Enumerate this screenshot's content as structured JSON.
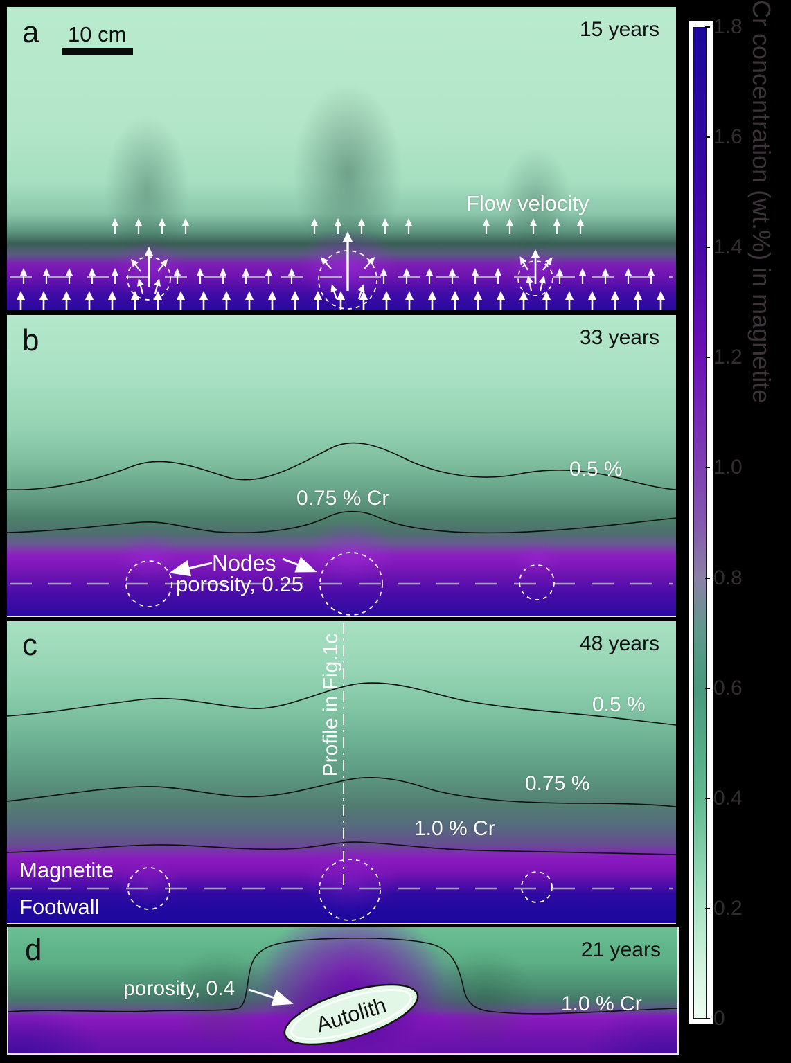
{
  "figure": {
    "panels": {
      "a": {
        "label": "a",
        "time": "15 years",
        "scalebar": "10 cm",
        "flow_label": "Flow velocity"
      },
      "b": {
        "label": "b",
        "time": "33 years",
        "contour_05": "0.5 %",
        "contour_075": "0.75 % Cr",
        "nodes_label": "Nodes",
        "porosity_label": "porosity, 0.25"
      },
      "c": {
        "label": "c",
        "time": "48 years",
        "contour_05": "0.5 %",
        "contour_075": "0.75 %",
        "contour_10": "1.0 % Cr",
        "profile_label": "Profile in Fig.1c",
        "magnetite": "Magnetite",
        "footwall": "Footwall"
      },
      "d": {
        "label": "d",
        "time": "21 years",
        "porosity_label": "porosity, 0.4",
        "autolith": "Autolith",
        "contour_10": "1.0 % Cr"
      }
    },
    "colorbar": {
      "title": "Cr concentration (wt.%) in magnetite",
      "ticks": [
        "1.8",
        "1.6",
        "1.4",
        "1.2",
        "1.0",
        "0.8",
        "0.6",
        "0.4",
        "0.2",
        "0"
      ]
    }
  },
  "chart_data": {
    "type": "heatmap",
    "title": "Cr concentration (wt.%) in magnetite",
    "colorbar": {
      "unit": "wt.% Cr",
      "min": 0,
      "max": 1.8,
      "tick_values": [
        1.8,
        1.6,
        1.4,
        1.2,
        1.0,
        0.8,
        0.6,
        0.4,
        0.2,
        0
      ],
      "colormap_stops": [
        {
          "value": 1.8,
          "color": "#1c089b"
        },
        {
          "value": 1.6,
          "color": "#2f08a1"
        },
        {
          "value": 1.4,
          "color": "#4809a9"
        },
        {
          "value": 1.2,
          "color": "#6c10b5"
        },
        {
          "value": 1.0,
          "color": "#7f3db3"
        },
        {
          "value": 0.8,
          "color": "#8b80a6"
        },
        {
          "value": 0.6,
          "color": "#49997e"
        },
        {
          "value": 0.4,
          "color": "#5fba90"
        },
        {
          "value": 0.2,
          "color": "#a9e3c5"
        },
        {
          "value": 0.0,
          "color": "#edfdf2"
        }
      ]
    },
    "panels": [
      {
        "id": "a",
        "time_years": 15,
        "scale_bar_cm": 10,
        "annotations": [
          "Flow velocity"
        ],
        "features": "Upward flow-velocity arrows; three porosity nodes (dashed circles) centered on the dashed magnetite-footwall contact; Cr-depleted green plumes rising above nodes"
      },
      {
        "id": "b",
        "time_years": 33,
        "node_porosity": 0.25,
        "contour_levels_wt_pct": [
          0.5,
          0.75
        ],
        "features": "Black Cr iso-concentration contours bulge upward above the three nodes"
      },
      {
        "id": "c",
        "time_years": 48,
        "contour_levels_wt_pct": [
          0.5,
          0.75,
          1.0
        ],
        "annotations": [
          "Profile in Fig.1c",
          "Magnetite",
          "Footwall"
        ],
        "features": "Vertical dash-dot profile line through the central node; dashed magnetite/footwall contact"
      },
      {
        "id": "d",
        "time_years": 21,
        "autolith_porosity": 0.4,
        "contour_levels_wt_pct": [
          1.0
        ],
        "features": "High-Cr purple plume enveloping a pale-green Autolith ellipse; 1.0 % Cr contour"
      }
    ]
  }
}
